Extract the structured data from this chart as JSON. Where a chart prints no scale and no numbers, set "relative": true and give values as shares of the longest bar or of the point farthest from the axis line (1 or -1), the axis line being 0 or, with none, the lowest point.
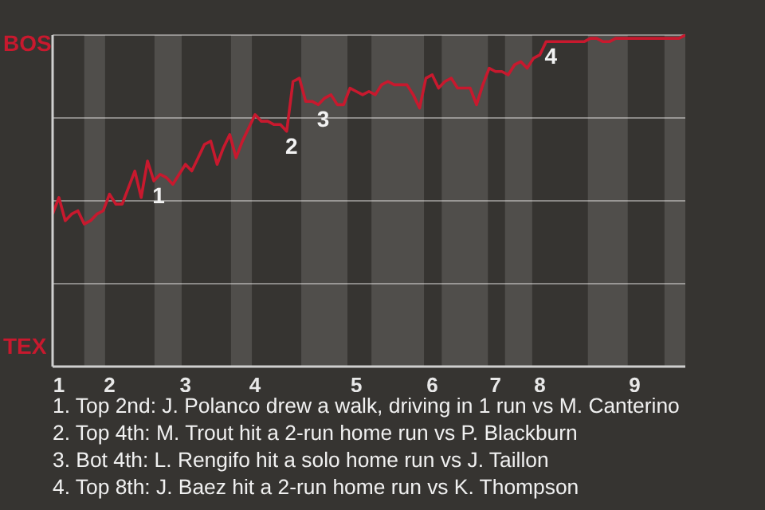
{
  "chart_data": {
    "type": "line",
    "relative": true,
    "categories": [
      null,
      "1",
      null,
      null,
      null,
      null,
      null,
      null,
      null,
      "2",
      null,
      null,
      null,
      null,
      null,
      null,
      null,
      null,
      null,
      null,
      null,
      "3",
      null,
      null,
      null,
      null,
      null,
      null,
      null,
      null,
      null,
      null,
      "4",
      null,
      null,
      null,
      null,
      null,
      null,
      null,
      null,
      null,
      null,
      null,
      null,
      null,
      null,
      null,
      "5",
      null,
      null,
      null,
      null,
      null,
      null,
      null,
      null,
      null,
      null,
      null,
      "6",
      null,
      null,
      null,
      null,
      null,
      null,
      null,
      null,
      null,
      "7",
      null,
      null,
      null,
      null,
      null,
      null,
      "8",
      null,
      null,
      null,
      null,
      null,
      null,
      null,
      null,
      null,
      null,
      null,
      null,
      null,
      null,
      "9",
      null,
      null,
      null,
      null,
      null,
      null,
      null,
      null
    ],
    "series": [
      {
        "color": "#c8192e",
        "values": [
          0.46,
          0.51,
          0.44,
          0.46,
          0.47,
          0.43,
          0.44,
          0.46,
          0.47,
          0.52,
          0.49,
          0.49,
          0.54,
          0.59,
          0.51,
          0.62,
          0.56,
          0.58,
          0.57,
          0.55,
          0.58,
          0.61,
          0.59,
          0.63,
          0.67,
          0.68,
          0.61,
          0.66,
          0.7,
          0.63,
          0.68,
          0.72,
          0.76,
          0.74,
          0.74,
          0.73,
          0.73,
          0.71,
          0.86,
          0.87,
          0.8,
          0.8,
          0.79,
          0.81,
          0.82,
          0.79,
          0.79,
          0.84,
          0.83,
          0.82,
          0.83,
          0.82,
          0.85,
          0.86,
          0.85,
          0.85,
          0.85,
          0.82,
          0.78,
          0.87,
          0.88,
          0.84,
          0.86,
          0.87,
          0.84,
          0.84,
          0.84,
          0.79,
          0.85,
          0.9,
          0.89,
          0.89,
          0.88,
          0.91,
          0.92,
          0.9,
          0.93,
          0.94,
          0.98,
          0.98,
          0.98,
          0.98,
          0.98,
          0.98,
          0.98,
          0.99,
          0.99,
          0.98,
          0.98,
          0.99,
          0.99,
          0.99,
          0.99,
          0.99,
          0.99,
          0.99,
          0.99,
          0.99,
          0.99,
          0.99,
          1.0
        ]
      }
    ],
    "grid": "y",
    "marker": "none",
    "line_style": "solid",
    "annotations": [
      "BOS",
      "TEX",
      {
        "text": "1",
        "y": 0.56
      },
      {
        "text": "2",
        "y": 0.71
      },
      {
        "text": "3",
        "y": 0.79
      },
      {
        "text": "4",
        "y": 0.98
      },
      "1. Top 2nd: J. Polanco drew a walk, driving in 1 run vs M. Canterino",
      "2. Top 4th: M. Trout hit a 2-run home run vs P. Blackburn",
      "3. Bot 4th: L. Rengifo hit a solo home run vs J. Taillon",
      "4. Top 8th: J. Baez hit a 2-run home run vs K. Thompson"
    ]
  }
}
